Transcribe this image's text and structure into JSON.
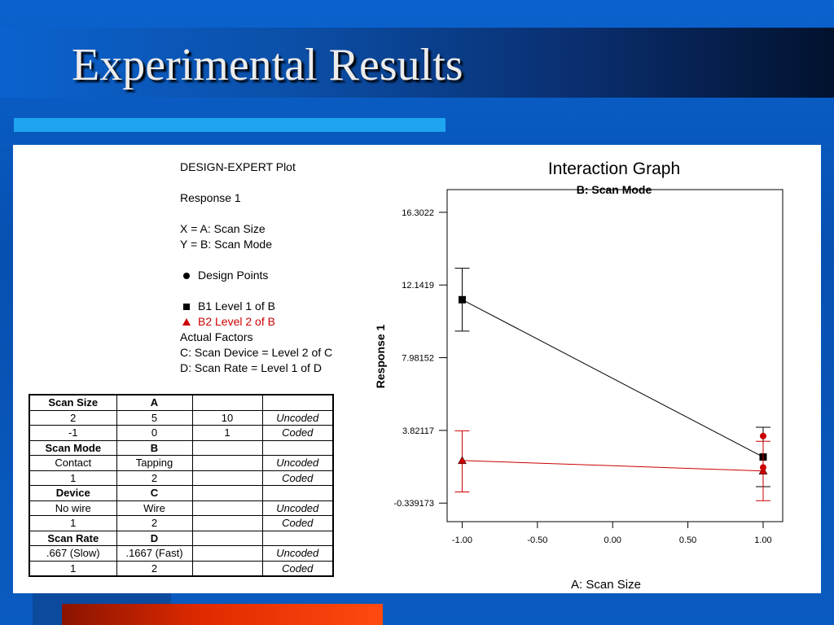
{
  "slide": {
    "title": "Experimental Results"
  },
  "legend": {
    "header": "DESIGN-EXPERT Plot",
    "response": "Response 1",
    "x_label": "X = A: Scan Size",
    "y_label": "Y = B: Scan Mode",
    "design_points": "Design Points",
    "b1": "B1 Level 1 of B",
    "b2": "B2 Level 2 of B",
    "actual_factors": "Actual Factors",
    "factor_c": "C: Scan Device = Level 2 of C",
    "factor_d": "D: Scan Rate = Level 1 of D"
  },
  "factor_table": {
    "rows": [
      [
        "Scan Size",
        "A",
        "",
        ""
      ],
      [
        "2",
        "5",
        "10",
        "Uncoded"
      ],
      [
        "-1",
        "0",
        "1",
        "Coded"
      ],
      [
        "Scan Mode",
        "B",
        "",
        ""
      ],
      [
        "Contact",
        "Tapping",
        "",
        "Uncoded"
      ],
      [
        "1",
        "2",
        "",
        "Coded"
      ],
      [
        "Device",
        "C",
        "",
        ""
      ],
      [
        "No wire",
        "Wire",
        "",
        "Uncoded"
      ],
      [
        "1",
        "2",
        "",
        "Coded"
      ],
      [
        "Scan Rate",
        "D",
        "",
        ""
      ],
      [
        ".667 (Slow)",
        ".1667 (Fast)",
        "",
        "Uncoded"
      ],
      [
        "1",
        "2",
        "",
        "Coded"
      ]
    ]
  },
  "chart_data": {
    "type": "line",
    "title": "Interaction Graph",
    "subtitle": "B: Scan Mode",
    "xlabel": "A: Scan Size",
    "ylabel": "Response 1",
    "xlim": [
      -1.1,
      1.13
    ],
    "ylim": [
      -1.4,
      17.6
    ],
    "x_ticks": [
      "-1.00",
      "-0.50",
      "0.00",
      "0.50",
      "1.00"
    ],
    "y_ticks": [
      "16.3022",
      "12.1419",
      "7.98152",
      "3.82117",
      "-0.339173"
    ],
    "series": [
      {
        "name": "B1 Level 1 of B",
        "color": "#000000",
        "marker": "square",
        "x": [
          -1,
          1
        ],
        "y": [
          11.3,
          2.3
        ],
        "err_low": [
          9.5,
          0.6
        ],
        "err_high": [
          13.1,
          4.0
        ]
      },
      {
        "name": "B2 Level 2 of B",
        "color": "#cc0000",
        "marker": "triangle",
        "x": [
          -1,
          1
        ],
        "y": [
          2.1,
          1.5
        ],
        "err_low": [
          0.3,
          -0.2
        ],
        "err_high": [
          3.8,
          3.2
        ]
      }
    ],
    "design_points": {
      "color": "#cc0000",
      "x": [
        1,
        1
      ],
      "y": [
        3.5,
        1.7
      ]
    },
    "grid": false
  }
}
